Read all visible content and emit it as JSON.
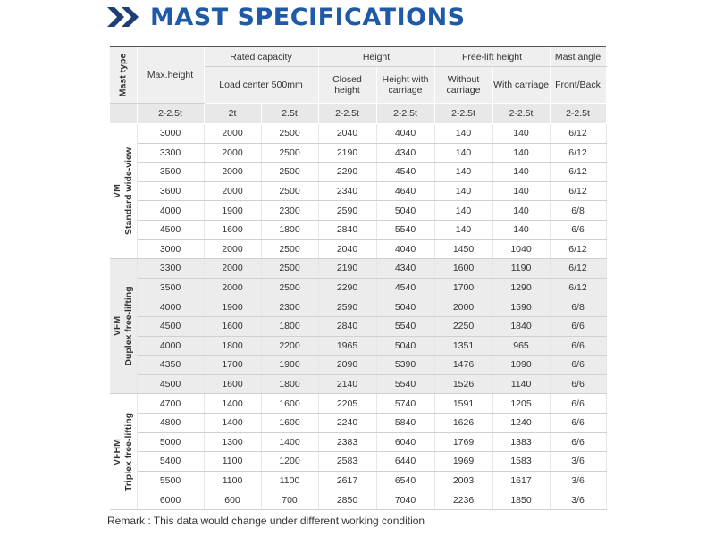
{
  "title": "MAST SPECIFICATIONS",
  "header": {
    "mast_type": "Mast type",
    "max_height": "Max.height",
    "rated_capacity": "Rated capacity",
    "load_center": "Load center 500mm",
    "height": "Height",
    "closed_height": "Closed height",
    "height_with_carriage": "Height with carriage",
    "free_lift_height": "Free-lift height",
    "without_carriage": "Without carriage",
    "with_carriage": "With carriage",
    "mast_angle": "Mast angle",
    "front_back": "Front/Back",
    "sub": [
      "2-2.5t",
      "2t",
      "2.5t",
      "2-2.5t",
      "2-2.5t",
      "2-2.5t",
      "2-2.5t",
      "2-2.5t"
    ]
  },
  "groups": [
    {
      "code": "VM",
      "name": "Standard wide-view",
      "rows": [
        [
          "3000",
          "2000",
          "2500",
          "2040",
          "4040",
          "140",
          "140",
          "6/12"
        ],
        [
          "3300",
          "2000",
          "2500",
          "2190",
          "4340",
          "140",
          "140",
          "6/12"
        ],
        [
          "3500",
          "2000",
          "2500",
          "2290",
          "4540",
          "140",
          "140",
          "6/12"
        ],
        [
          "3600",
          "2000",
          "2500",
          "2340",
          "4640",
          "140",
          "140",
          "6/12"
        ],
        [
          "4000",
          "1900",
          "2300",
          "2590",
          "5040",
          "140",
          "140",
          "6/8"
        ],
        [
          "4500",
          "1600",
          "1800",
          "2840",
          "5540",
          "140",
          "140",
          "6/6"
        ],
        [
          "3000",
          "2000",
          "2500",
          "2040",
          "4040",
          "1450",
          "1040",
          "6/12"
        ]
      ]
    },
    {
      "code": "VFM",
      "name": "Duplex free-lifting",
      "rows": [
        [
          "3300",
          "2000",
          "2500",
          "2190",
          "4340",
          "1600",
          "1190",
          "6/12"
        ],
        [
          "3500",
          "2000",
          "2500",
          "2290",
          "4540",
          "1700",
          "1290",
          "6/12"
        ],
        [
          "4000",
          "1900",
          "2300",
          "2590",
          "5040",
          "2000",
          "1590",
          "6/8"
        ],
        [
          "4500",
          "1600",
          "1800",
          "2840",
          "5540",
          "2250",
          "1840",
          "6/6"
        ],
        [
          "4000",
          "1800",
          "2200",
          "1965",
          "5040",
          "1351",
          "965",
          "6/6"
        ],
        [
          "4350",
          "1700",
          "1900",
          "2090",
          "5390",
          "1476",
          "1090",
          "6/6"
        ],
        [
          "4500",
          "1600",
          "1800",
          "2140",
          "5540",
          "1526",
          "1140",
          "6/6"
        ]
      ]
    },
    {
      "code": "VFHM",
      "name": "Triplex free-lifting",
      "rows": [
        [
          "4700",
          "1400",
          "1600",
          "2205",
          "5740",
          "1591",
          "1205",
          "6/6"
        ],
        [
          "4800",
          "1400",
          "1600",
          "2240",
          "5840",
          "1626",
          "1240",
          "6/6"
        ],
        [
          "5000",
          "1300",
          "1400",
          "2383",
          "6040",
          "1769",
          "1383",
          "6/6"
        ],
        [
          "5400",
          "1100",
          "1200",
          "2583",
          "6440",
          "1969",
          "1583",
          "3/6"
        ],
        [
          "5500",
          "1100",
          "1100",
          "2617",
          "6540",
          "2003",
          "1617",
          "3/6"
        ],
        [
          "6000",
          "600",
          "700",
          "2850",
          "7040",
          "2236",
          "1850",
          "3/6"
        ]
      ]
    }
  ],
  "remark": "Remark : This data would change under different working condition",
  "colors": {
    "title": "#1f5aa8",
    "header_bg": "#efefef",
    "shade_bg": "#ececec"
  }
}
